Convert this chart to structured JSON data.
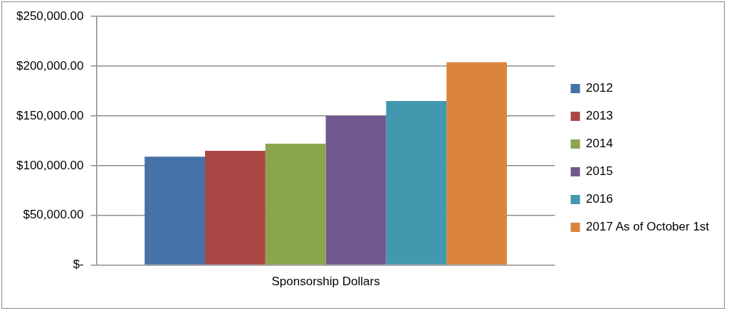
{
  "chart_data": {
    "type": "bar",
    "categories": [
      "Sponsorship Dollars"
    ],
    "series": [
      {
        "name": "2012",
        "color": "#4572a7",
        "values": [
          109000
        ]
      },
      {
        "name": "2013",
        "color": "#aa4643",
        "values": [
          115000
        ]
      },
      {
        "name": "2014",
        "color": "#89a54e",
        "values": [
          122000
        ]
      },
      {
        "name": "2015",
        "color": "#71588f",
        "values": [
          150000
        ]
      },
      {
        "name": "2016",
        "color": "#4198af",
        "values": [
          165000
        ]
      },
      {
        "name": "2017 As of October 1st",
        "color": "#db843d",
        "values": [
          204000
        ]
      }
    ],
    "ylim": [
      0,
      250000
    ],
    "yticks": [
      {
        "value": 0,
        "label": "$-"
      },
      {
        "value": 50000,
        "label": "$50,000.00"
      },
      {
        "value": 100000,
        "label": "$100,000.00"
      },
      {
        "value": 150000,
        "label": "$150,000.00"
      },
      {
        "value": 200000,
        "label": "$200,000.00"
      },
      {
        "value": 250000,
        "label": "$250,000.00"
      }
    ],
    "grid": "y",
    "legend": "right"
  }
}
